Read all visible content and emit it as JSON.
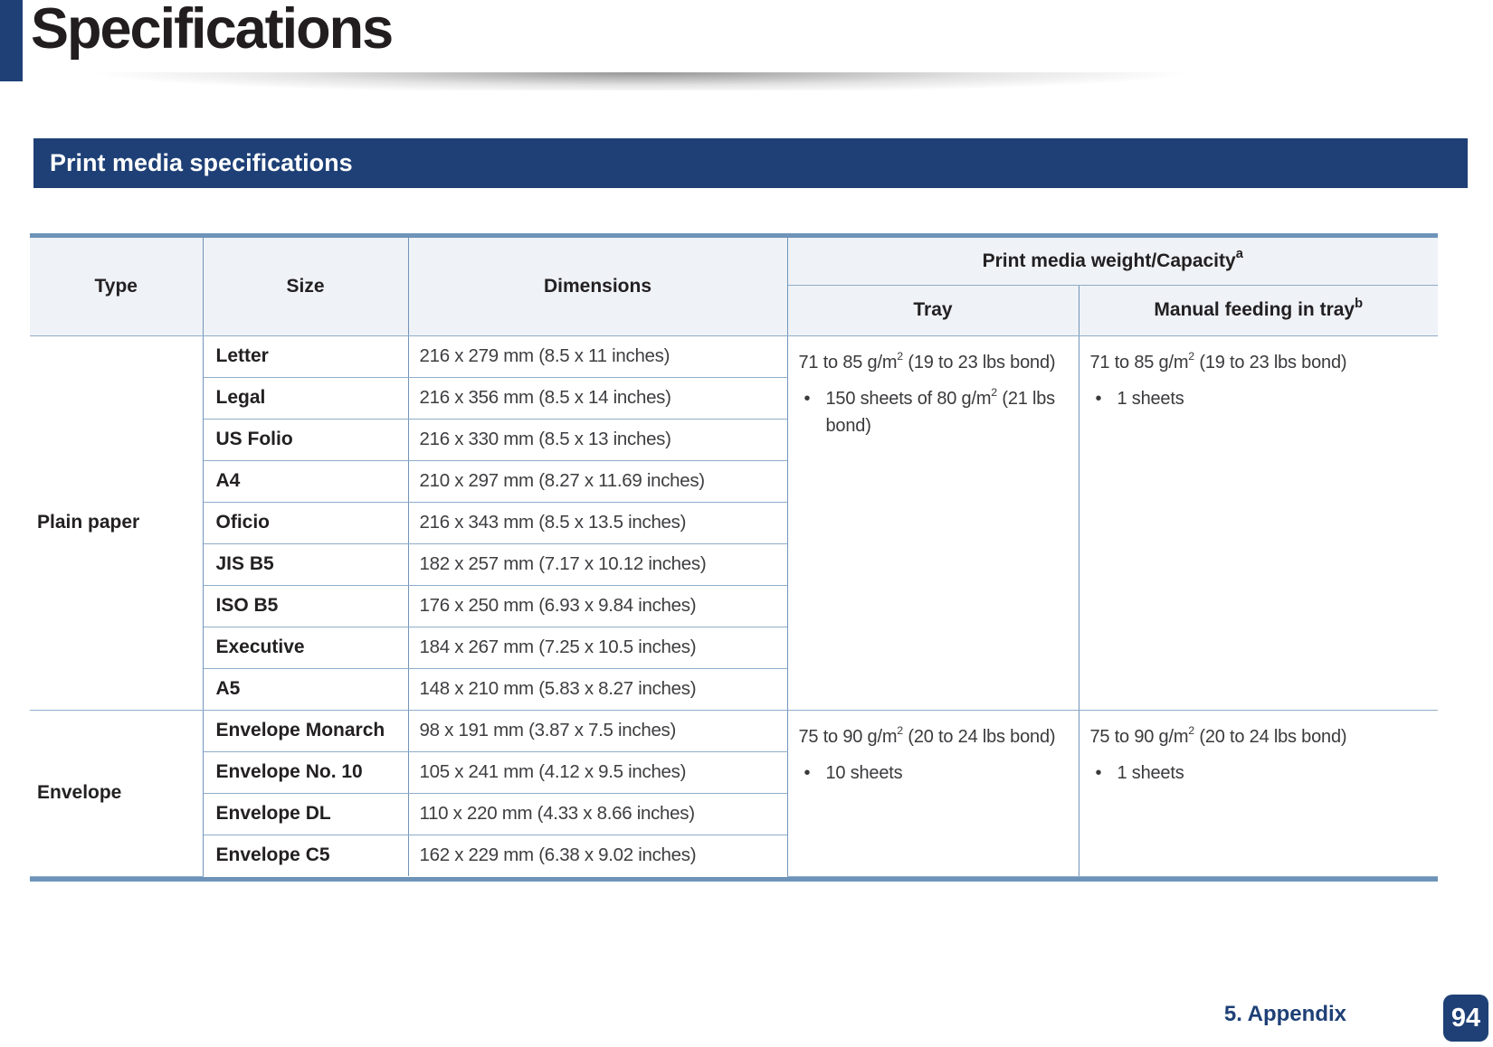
{
  "page": {
    "title": "Specifications",
    "section_title": "Print media specifications",
    "footer": {
      "chapter": "5.  Appendix",
      "page_number": "94"
    }
  },
  "colors": {
    "navy": "#1e4076",
    "table_thick_border": "#6e93b8",
    "cell_border": "#7295ba",
    "header_bg": "#eff2f6"
  },
  "table": {
    "bullet_char": "•",
    "headers": {
      "type": "Type",
      "size": "Size",
      "dimensions": "Dimensions",
      "capacity_group": {
        "text": "Print media weight/Capacity",
        "sup": "a"
      },
      "tray": "Tray",
      "manual": {
        "text": "Manual feeding in tray",
        "sup": "b"
      }
    },
    "groups": [
      {
        "type": "Plain paper",
        "rows": [
          {
            "size": "Letter",
            "dimensions": "216 x 279 mm (8.5 x 11 inches)"
          },
          {
            "size": "Legal",
            "dimensions": "216 x 356 mm (8.5 x 14 inches)"
          },
          {
            "size": "US Folio",
            "dimensions": "216 x 330 mm (8.5 x 13 inches)"
          },
          {
            "size": "A4",
            "dimensions": "210 x 297 mm (8.27 x 11.69 inches)"
          },
          {
            "size": "Oficio",
            "dimensions": "216 x 343 mm (8.5 x 13.5 inches)"
          },
          {
            "size": "JIS B5",
            "dimensions": "182 x 257 mm (7.17 x 10.12 inches)"
          },
          {
            "size": "ISO B5",
            "dimensions": "176 x 250 mm (6.93 x 9.84 inches)"
          },
          {
            "size": "Executive",
            "dimensions": "184 x 267 mm (7.25 x 10.5 inches)"
          },
          {
            "size": "A5",
            "dimensions": "148 x 210 mm (5.83 x 8.27 inches)"
          }
        ],
        "tray": {
          "weight": {
            "pre": "71 to 85 g/m",
            "sup": "2",
            "post": " (19 to 23 lbs bond)"
          },
          "bullets": [
            {
              "pre": "150 sheets of 80 g/m",
              "sup": "2",
              "post": " (21 lbs bond)"
            }
          ]
        },
        "manual": {
          "weight": {
            "pre": "71 to 85 g/m",
            "sup": "2",
            "post": " (19 to 23 lbs bond)"
          },
          "bullets": [
            {
              "pre": "1 sheets",
              "sup": "",
              "post": ""
            }
          ]
        }
      },
      {
        "type": "Envelope",
        "rows": [
          {
            "size": "Envelope Monarch",
            "dimensions": "98 x 191 mm (3.87 x 7.5 inches)"
          },
          {
            "size": "Envelope No. 10",
            "dimensions": "105 x 241 mm (4.12 x 9.5 inches)"
          },
          {
            "size": "Envelope DL",
            "dimensions": "110 x 220 mm (4.33 x 8.66 inches)"
          },
          {
            "size": "Envelope C5",
            "dimensions": "162 x 229 mm (6.38 x 9.02 inches)"
          }
        ],
        "tray": {
          "weight": {
            "pre": "75 to 90 g/m",
            "sup": "2",
            "post": " (20 to 24 lbs bond)"
          },
          "bullets": [
            {
              "pre": "10 sheets",
              "sup": "",
              "post": ""
            }
          ]
        },
        "manual": {
          "weight": {
            "pre": "75 to 90 g/m",
            "sup": "2",
            "post": " (20 to 24 lbs bond)"
          },
          "bullets": [
            {
              "pre": "1 sheets",
              "sup": "",
              "post": ""
            }
          ]
        }
      }
    ]
  }
}
